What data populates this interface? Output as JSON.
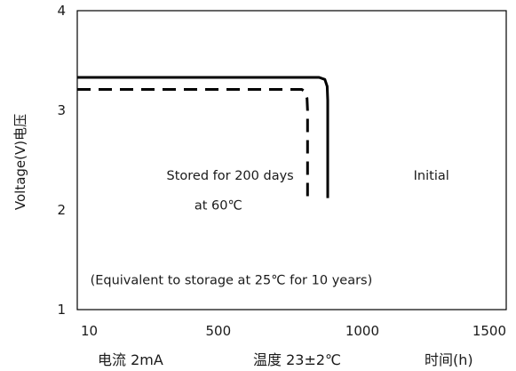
{
  "chart_data": {
    "type": "line",
    "ylabel": "Voltage(V)电压",
    "xlim": [
      10,
      1500
    ],
    "ylim": [
      1,
      4
    ],
    "xticks": [
      10,
      500,
      1000,
      1500
    ],
    "yticks": [
      1,
      2,
      3,
      4
    ],
    "grid": false,
    "series": [
      {
        "line_style": "solid",
        "color": "#000000",
        "points": [
          [
            10,
            3.33
          ],
          [
            850,
            3.33
          ],
          [
            870,
            3.31
          ],
          [
            878,
            3.24
          ],
          [
            880,
            3.1
          ],
          [
            880,
            2.12
          ]
        ]
      },
      {
        "line_style": "dashed",
        "color": "#000000",
        "points": [
          [
            10,
            3.21
          ],
          [
            790,
            3.21
          ],
          [
            800,
            3.19
          ],
          [
            808,
            3.12
          ],
          [
            810,
            3.0
          ],
          [
            810,
            2.12
          ]
        ]
      }
    ],
    "annotations": [
      {
        "text": "Stored for 200 days",
        "x": 541,
        "y": 2.35
      },
      {
        "text": "at 60℃",
        "x": 500,
        "y": 2.05
      },
      {
        "text": "Initial",
        "x": 1240,
        "y": 2.35
      },
      {
        "text": "(Equivalent to storage at 25℃ for 10 years)",
        "x": 545,
        "y": 1.3
      }
    ],
    "footer": [
      {
        "text": "电流  2mA",
        "x": 10
      },
      {
        "text": "温度  23±2℃",
        "x": 600
      },
      {
        "text": "时间(h)",
        "x": 1300
      }
    ]
  }
}
